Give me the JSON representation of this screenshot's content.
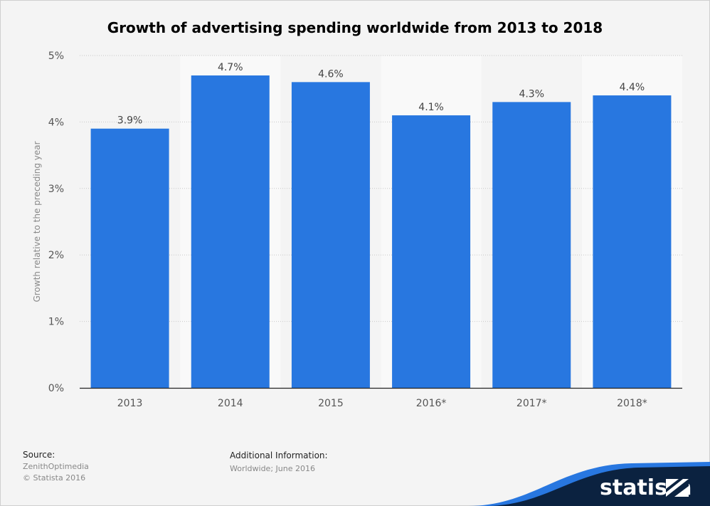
{
  "chart_data": {
    "type": "bar",
    "title": "Growth of advertising spending worldwide from 2013 to 2018",
    "categories": [
      "2013",
      "2014",
      "2015",
      "2016*",
      "2017*",
      "2018*"
    ],
    "values": [
      3.9,
      4.7,
      4.6,
      4.1,
      4.3,
      4.4
    ],
    "value_labels": [
      "3.9%",
      "4.7%",
      "4.6%",
      "4.1%",
      "4.3%",
      "4.4%"
    ],
    "xlabel": "",
    "ylabel": "Growth relative to the preceding year",
    "ylim": [
      0,
      5
    ],
    "y_ticks": [
      0,
      1,
      2,
      3,
      4,
      5
    ],
    "y_tick_labels": [
      "0%",
      "1%",
      "2%",
      "3%",
      "4%",
      "5%"
    ],
    "grid": true,
    "bar_color": "#2877e0"
  },
  "footer": {
    "source_heading": "Source:",
    "source_lines": [
      "ZenithOptimedia",
      "© Statista 2016"
    ],
    "info_heading": "Additional Information:",
    "info_text": "Worldwide; June 2016"
  },
  "branding": {
    "logo_text": "statista",
    "brand_dark": "#0b2240",
    "brand_accent": "#2877e0"
  }
}
